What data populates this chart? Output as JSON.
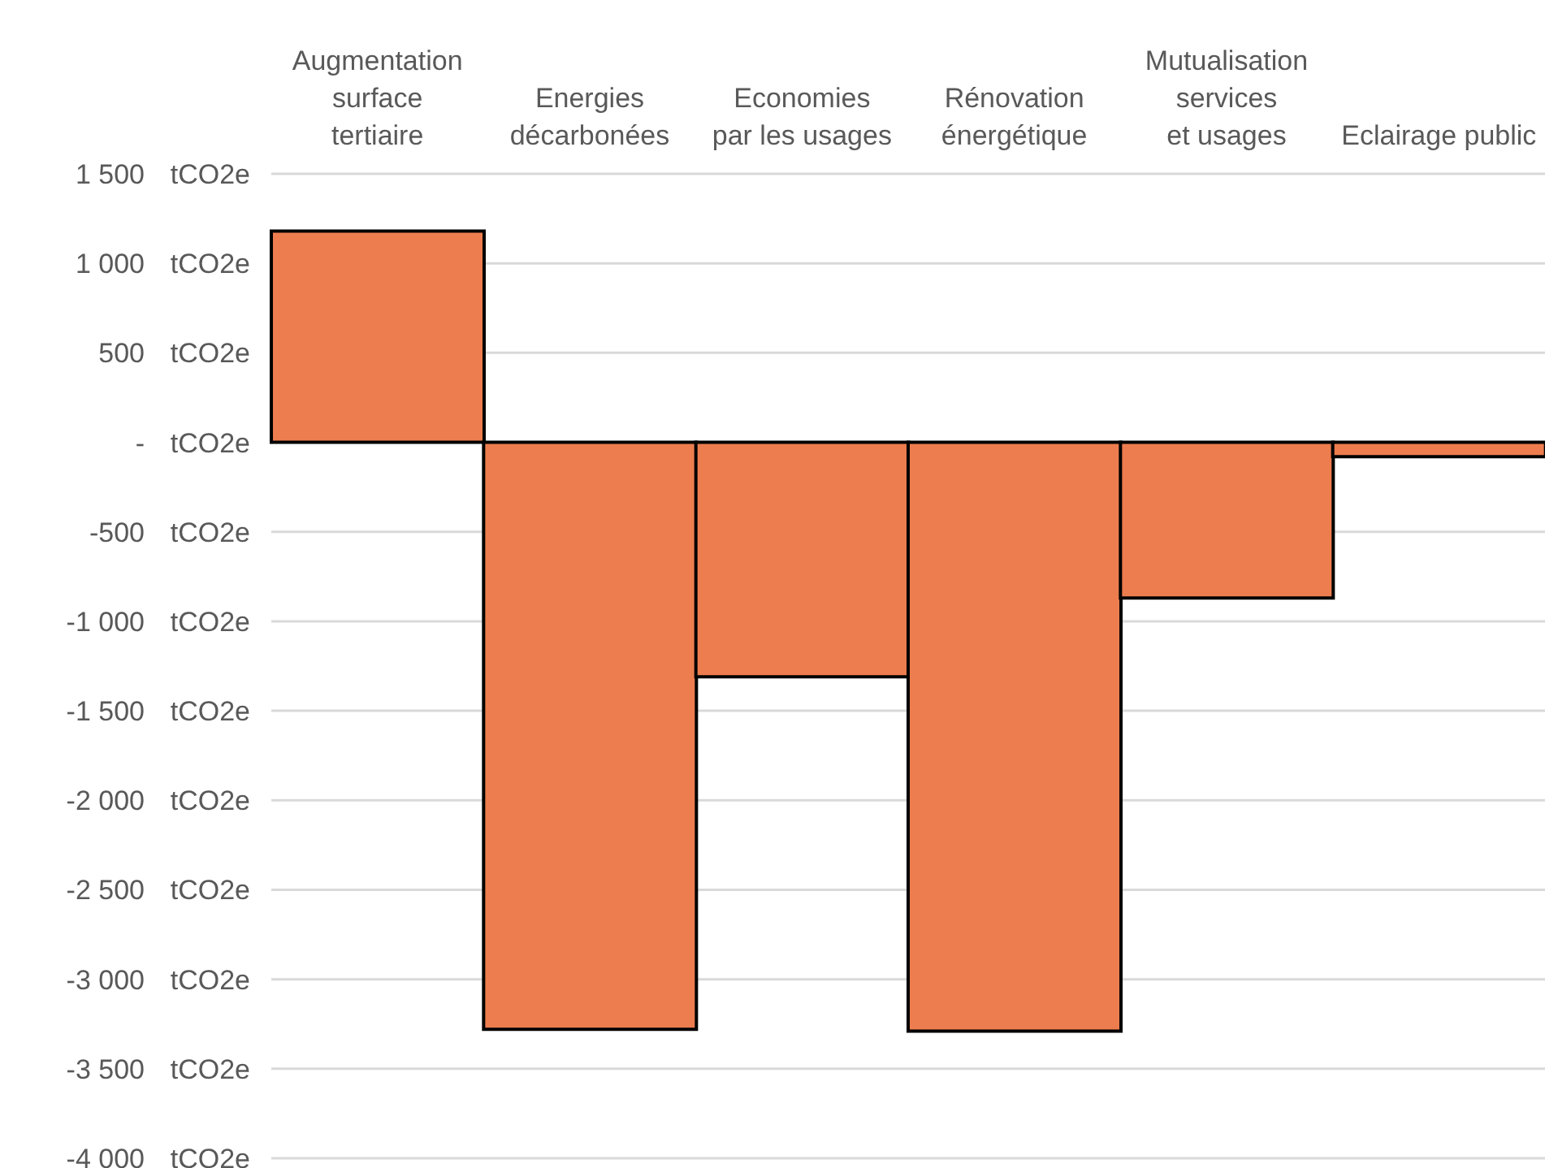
{
  "chart_data": {
    "type": "bar",
    "categories": [
      "Augmentation\nsurface\ntertiaire",
      "Energies\ndécarbonées",
      "Economies\npar les usages",
      "Rénovation\nénergétique",
      "Mutualisation\nservices\net usages",
      "Eclairage public"
    ],
    "values": [
      1180,
      -3280,
      -1310,
      -3290,
      -870,
      -80
    ],
    "color": "#ed7d4f",
    "ylim": [
      -4000,
      1500
    ],
    "yticks": [
      {
        "value": 1500,
        "label": "1 500"
      },
      {
        "value": 1000,
        "label": "1 000"
      },
      500,
      {
        "value": 0,
        "label": "-"
      },
      -500,
      {
        "value": -1000,
        "label": "-1 000"
      },
      {
        "value": -1500,
        "label": "-1 500"
      },
      {
        "value": -2000,
        "label": "-2 000"
      },
      {
        "value": -2500,
        "label": "-2 500"
      },
      {
        "value": -3000,
        "label": "-3 000"
      },
      {
        "value": -3500,
        "label": "-3 500"
      },
      {
        "value": -4000,
        "label": "-4 000"
      }
    ],
    "ylabel": "tCO2e",
    "grid": "y",
    "legend": false
  }
}
